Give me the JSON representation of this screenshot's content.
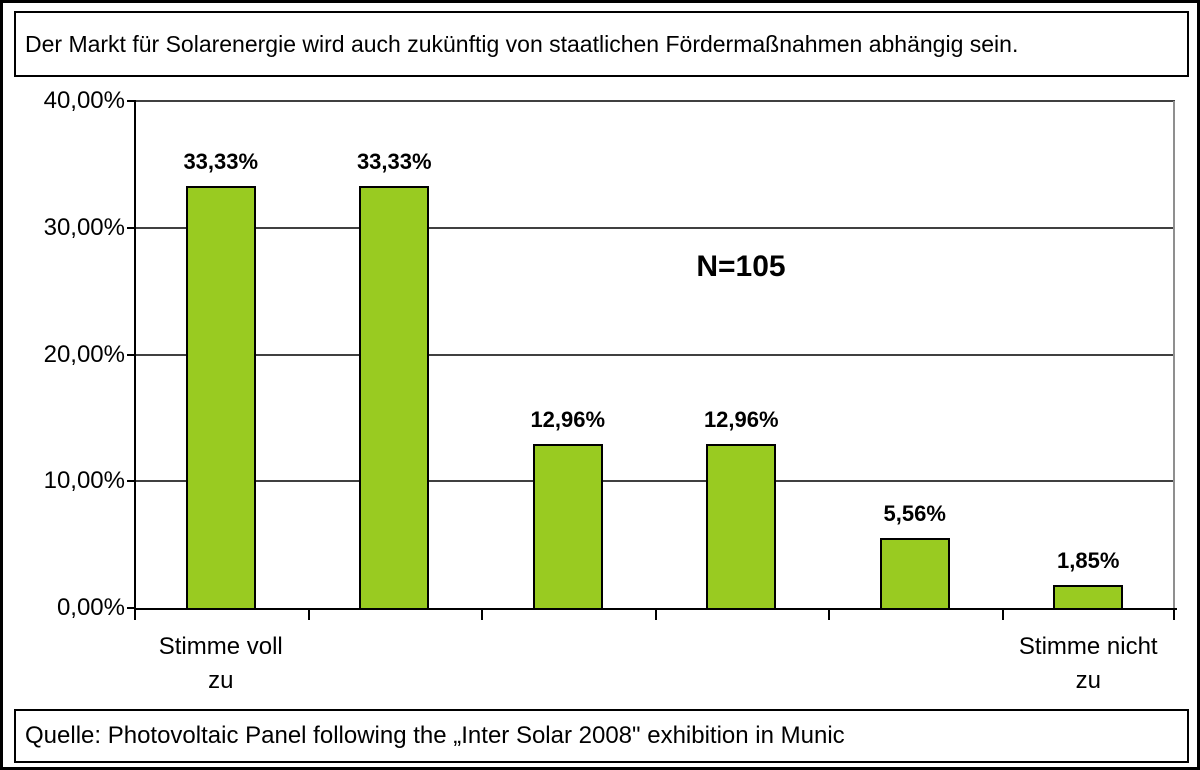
{
  "header": {
    "title": "Der Markt für Solarenergie wird auch zukünftig von staatlichen Fördermaßnahmen abhängig sein."
  },
  "footer": {
    "source": "Quelle: Photovoltaic Panel following the „Inter Solar 2008\" exhibition in Munic"
  },
  "colors": {
    "bar_fill": "#99CB21",
    "bar_border": "#000000",
    "gridline": "#404040",
    "axis": "#000000",
    "background": "#ffffff"
  },
  "chart_data": {
    "type": "bar",
    "title": "Der Markt für Solarenergie wird auch zukünftig von staatlichen Fördermaßnahmen abhängig sein.",
    "annotation": "N=105",
    "categories": [
      [
        "Stimme voll",
        "zu"
      ],
      [],
      [],
      [],
      [],
      [
        "Stimme nicht",
        "zu"
      ]
    ],
    "values": [
      33.33,
      33.33,
      12.96,
      12.96,
      5.56,
      1.85
    ],
    "value_labels": [
      "33,33%",
      "33,33%",
      "12,96%",
      "12,96%",
      "5,56%",
      "1,85%"
    ],
    "y_tick_labels": [
      "40,00%",
      "30,00%",
      "20,00%",
      "10,00%",
      "0,00%"
    ],
    "y_tick_values": [
      40,
      30,
      20,
      10,
      0
    ],
    "ylim": [
      0,
      40
    ],
    "grid": true,
    "legend": "none",
    "xlabel": "",
    "ylabel": ""
  }
}
